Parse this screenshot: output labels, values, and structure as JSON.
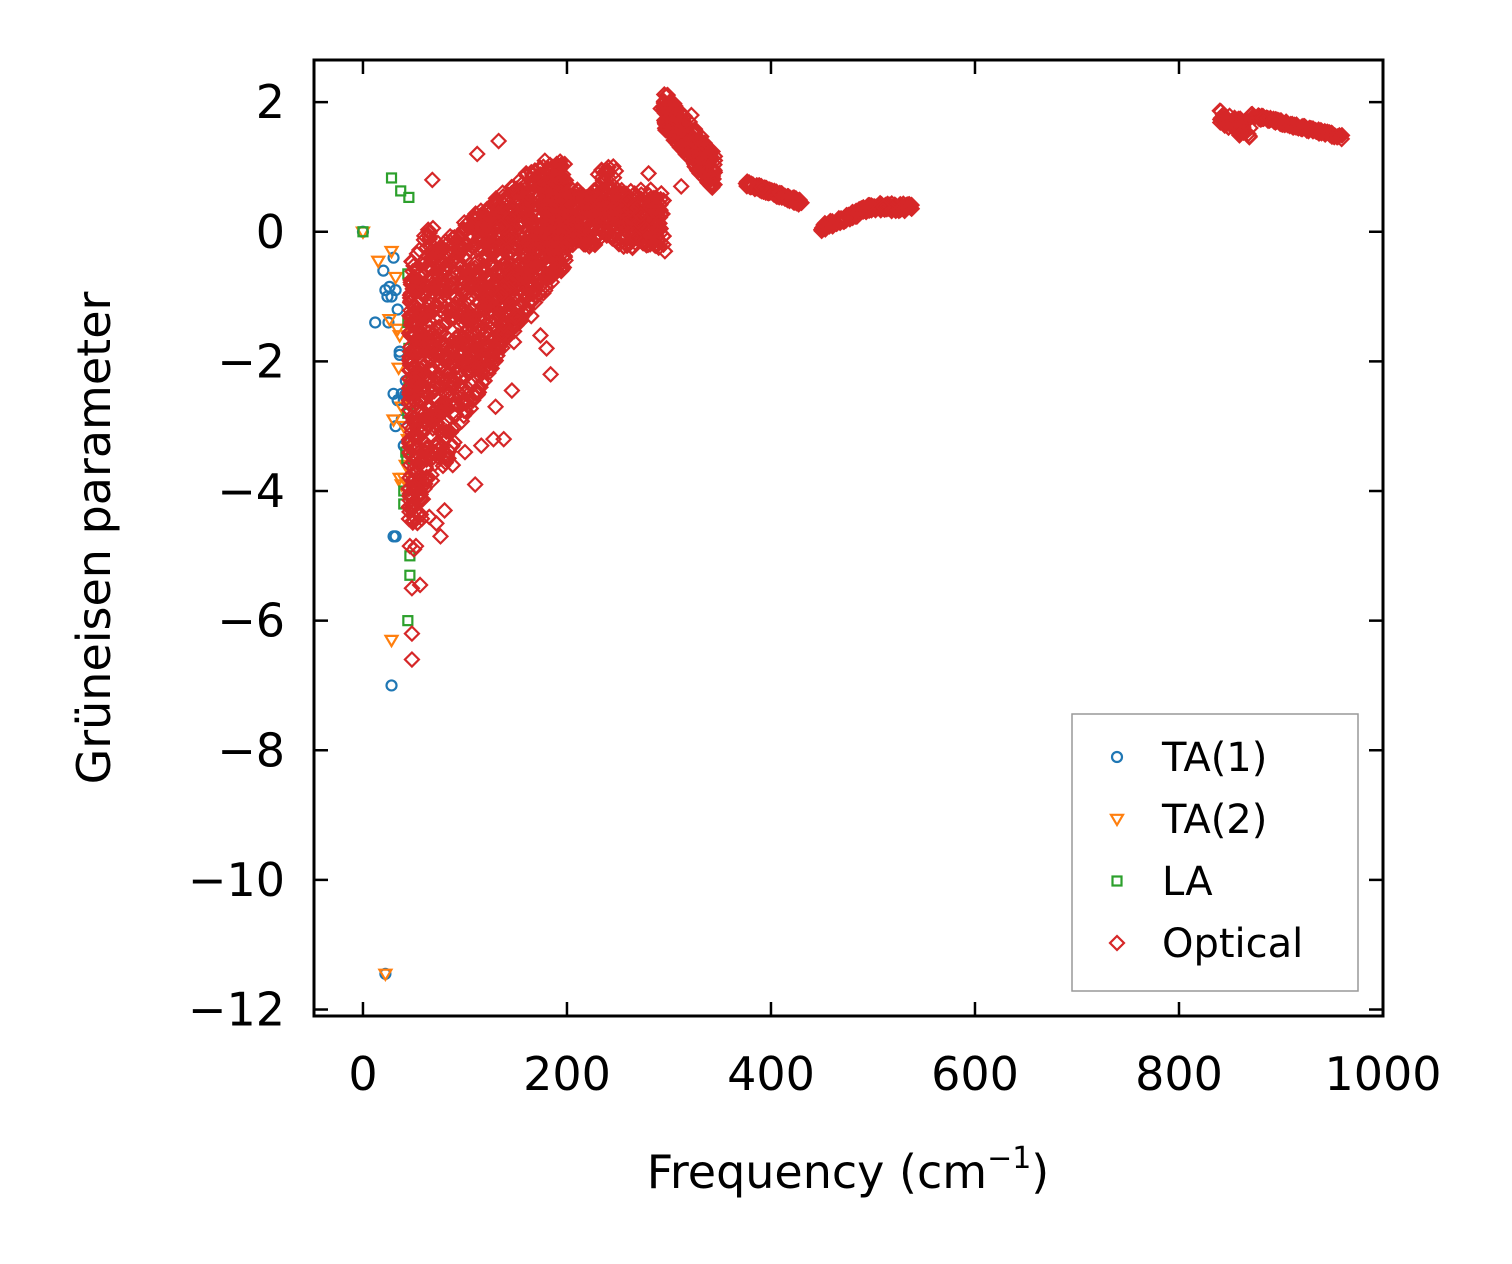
{
  "chart_data": {
    "type": "scatter",
    "xlabel": "Frequency (cm",
    "xlabel_sup": "−1",
    "xlabel_close": ")",
    "ylabel": "Grüneisen parameter",
    "xlim": [
      -48,
      1000
    ],
    "ylim": [
      -12.1,
      2.65
    ],
    "xticks": [
      0,
      200,
      400,
      600,
      800,
      1000
    ],
    "yticks": [
      2,
      0,
      -2,
      -4,
      -6,
      -8,
      -10,
      -12
    ],
    "ytick_labels": [
      "2",
      "0",
      "−2",
      "−4",
      "−6",
      "−8",
      "−10",
      "−12"
    ],
    "legend_position": "lower-right",
    "series": [
      {
        "name": "TA(1)",
        "marker": "circle",
        "color": "#1f77b4",
        "points": [
          [
            0,
            0
          ],
          [
            20,
            -0.6
          ],
          [
            22,
            -0.9
          ],
          [
            24,
            -1.0
          ],
          [
            26,
            -0.85
          ],
          [
            28,
            -1.0
          ],
          [
            30,
            -0.4
          ],
          [
            32,
            -0.9
          ],
          [
            34,
            -1.2
          ],
          [
            36,
            -1.9
          ],
          [
            38,
            -2.5
          ],
          [
            40,
            -2.6
          ],
          [
            30,
            -2.5
          ],
          [
            32,
            -3.0
          ],
          [
            34,
            -2.6
          ],
          [
            42,
            -2.5
          ],
          [
            44,
            -2.8
          ],
          [
            40,
            -3.3
          ],
          [
            32,
            -4.7
          ],
          [
            30,
            -4.7
          ],
          [
            28,
            -7.0
          ],
          [
            12,
            -1.4
          ],
          [
            25,
            -1.4
          ],
          [
            22,
            -11.45
          ],
          [
            36,
            -1.85
          ],
          [
            38,
            -2.9
          ],
          [
            42,
            -2.3
          ]
        ]
      },
      {
        "name": "TA(2)",
        "marker": "triangle-down",
        "color": "#ff7f0e",
        "points": [
          [
            0,
            0
          ],
          [
            15,
            -0.45
          ],
          [
            28,
            -0.3
          ],
          [
            32,
            -0.7
          ],
          [
            34,
            -1.5
          ],
          [
            36,
            -1.6
          ],
          [
            35,
            -2.1
          ],
          [
            38,
            -2.7
          ],
          [
            30,
            -2.9
          ],
          [
            40,
            -3.0
          ],
          [
            36,
            -3.8
          ],
          [
            38,
            -3.9
          ],
          [
            40,
            -3.8
          ],
          [
            42,
            -3.6
          ],
          [
            44,
            -3.2
          ],
          [
            28,
            -6.3
          ],
          [
            22,
            -11.45
          ],
          [
            26,
            -1.35
          ]
        ]
      },
      {
        "name": "LA",
        "marker": "square",
        "color": "#2ca02c",
        "points": [
          [
            0,
            0
          ],
          [
            28,
            0.83
          ],
          [
            37,
            0.63
          ],
          [
            45,
            0.53
          ],
          [
            44,
            -0.65
          ],
          [
            44,
            -1.4
          ],
          [
            45,
            -1.8
          ],
          [
            47,
            -2.3
          ],
          [
            45,
            -2.4
          ],
          [
            44,
            -2.8
          ],
          [
            42,
            -3.4
          ],
          [
            43,
            -3.5
          ],
          [
            40,
            -4.2
          ],
          [
            40,
            -4.0
          ],
          [
            46,
            -5.0
          ],
          [
            46,
            -5.3
          ],
          [
            44,
            -6.0
          ]
        ]
      },
      {
        "name": "Optical",
        "marker": "diamond",
        "color": "#d62728",
        "generate": "phonon-cloud",
        "points": [
          [
            68,
            0.8
          ],
          [
            112,
            1.2
          ],
          [
            133,
            1.4
          ],
          [
            160,
            0.9
          ],
          [
            292,
            1.9
          ],
          [
            302,
            1.95
          ],
          [
            322,
            1.8
          ],
          [
            55,
            -2.6
          ],
          [
            60,
            -3.5
          ],
          [
            65,
            -4.4
          ],
          [
            72,
            -4.5
          ],
          [
            76,
            -4.7
          ],
          [
            80,
            -4.3
          ],
          [
            88,
            -3.6
          ],
          [
            100,
            -3.4
          ],
          [
            110,
            -3.9
          ],
          [
            116,
            -3.3
          ],
          [
            128,
            -3.2
          ],
          [
            138,
            -3.2
          ],
          [
            146,
            -2.45
          ],
          [
            148,
            -1.7
          ],
          [
            165,
            -1.3
          ],
          [
            174,
            -1.6
          ],
          [
            180,
            -1.8
          ],
          [
            184,
            -2.2
          ],
          [
            46,
            -4.85
          ],
          [
            48,
            -5.5
          ],
          [
            50,
            -4.9
          ],
          [
            52,
            -4.85
          ],
          [
            56,
            -5.45
          ],
          [
            48,
            -6.2
          ],
          [
            48,
            -6.6
          ],
          [
            95,
            -2.7
          ],
          [
            108,
            -2.6
          ],
          [
            130,
            -2.7
          ],
          [
            150,
            -1.3
          ],
          [
            190,
            -0.6
          ],
          [
            200,
            0.6
          ],
          [
            240,
            0.9
          ],
          [
            260,
            0.5
          ],
          [
            280,
            0.9
          ],
          [
            296,
            -0.3
          ],
          [
            312,
            0.7
          ],
          [
            330,
            0.9
          ],
          [
            345,
            1.1
          ]
        ]
      }
    ]
  }
}
